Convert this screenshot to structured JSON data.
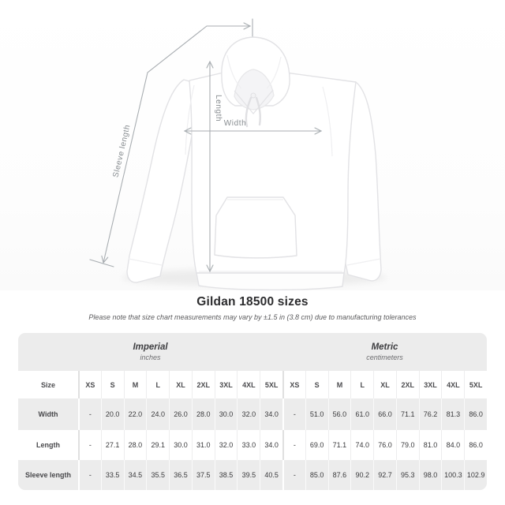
{
  "photo": {
    "annotations": {
      "length_label": "Length",
      "width_label": "Width",
      "sleeve_label": "Sleeve length"
    }
  },
  "title": "Gildan 18500 sizes",
  "note": "Please note that size chart measurements may vary by ±1.5 in (3.8 cm) due to manufacturing tolerances",
  "table": {
    "groups": [
      {
        "label": "Imperial",
        "sublabel": "inches"
      },
      {
        "label": "Metric",
        "sublabel": "centimeters"
      }
    ],
    "size_header": "Size",
    "sizes": [
      "XS",
      "S",
      "M",
      "L",
      "XL",
      "2XL",
      "3XL",
      "4XL",
      "5XL"
    ],
    "rows": [
      {
        "label": "Width",
        "imperial": [
          "-",
          "20.0",
          "22.0",
          "24.0",
          "26.0",
          "28.0",
          "30.0",
          "32.0",
          "34.0"
        ],
        "metric": [
          "-",
          "51.0",
          "56.0",
          "61.0",
          "66.0",
          "71.1",
          "76.2",
          "81.3",
          "86.0"
        ]
      },
      {
        "label": "Length",
        "imperial": [
          "-",
          "27.1",
          "28.0",
          "29.1",
          "30.0",
          "31.0",
          "32.0",
          "33.0",
          "34.0"
        ],
        "metric": [
          "-",
          "69.0",
          "71.1",
          "74.0",
          "76.0",
          "79.0",
          "81.0",
          "84.0",
          "86.0"
        ]
      },
      {
        "label": "Sleeve length",
        "imperial": [
          "-",
          "33.5",
          "34.5",
          "35.5",
          "36.5",
          "37.5",
          "38.5",
          "39.5",
          "40.5"
        ],
        "metric": [
          "-",
          "85.0",
          "87.6",
          "90.2",
          "92.7",
          "95.3",
          "98.0",
          "100.3",
          "102.9"
        ]
      }
    ]
  },
  "colors": {
    "annotation_line": "#a9aeb2",
    "annotation_text": "#878c90",
    "band_bg": "#ececec",
    "alt_row_bg": "#ececec"
  }
}
